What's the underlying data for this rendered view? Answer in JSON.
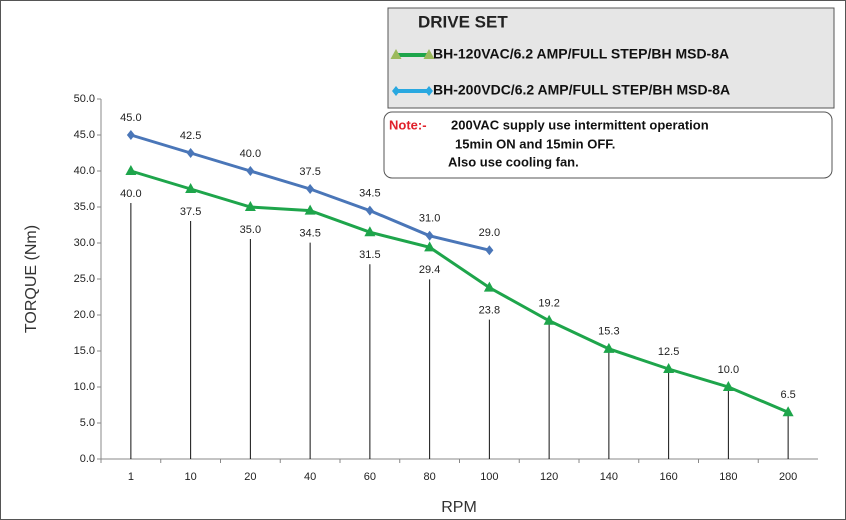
{
  "chart_data": {
    "type": "line",
    "legend_title": "DRIVE SET",
    "note_label": "Note:-",
    "note_lines": [
      "200VAC supply use intermittent operation",
      "15min ON and 15min OFF.",
      "Also use cooling fan."
    ],
    "xlabel": "RPM",
    "ylabel": "TORQUE (Nm)",
    "categories": [
      "1",
      "10",
      "20",
      "40",
      "60",
      "80",
      "100",
      "120",
      "140",
      "160",
      "180",
      "200"
    ],
    "ylim": [
      0,
      50
    ],
    "yticks": [
      {
        "value": 0,
        "label": "0.0"
      },
      {
        "value": 5,
        "label": "5.0"
      },
      {
        "value": 10,
        "label": "10.0"
      },
      {
        "value": 15,
        "label": "15.0"
      },
      {
        "value": 20,
        "label": "20.0"
      },
      {
        "value": 25,
        "label": "25.0"
      },
      {
        "value": 30,
        "label": "30.0"
      },
      {
        "value": 35,
        "label": "35.0"
      },
      {
        "value": 40,
        "label": "40.0"
      },
      {
        "value": 45,
        "label": "45.0"
      },
      {
        "value": 50,
        "label": "50.0"
      }
    ],
    "series": [
      {
        "name": "BH-120VAC/6.2 AMP/FULL STEP/BH MSD-8A",
        "color": "#1ea54b",
        "marker": "triangle",
        "values": [
          40,
          37.5,
          35,
          34.5,
          31.5,
          29.4,
          23.8,
          19.2,
          15.3,
          12.5,
          10,
          6.5
        ],
        "value_labels": [
          "40.0",
          "37.5",
          "35.0",
          "34.5",
          "31.5",
          "29.4",
          "23.8",
          "19.2",
          "15.3",
          "12.5",
          "10.0",
          "6.5"
        ]
      },
      {
        "name": "BH-200VDC/6.2 AMP/FULL STEP/BH MSD-8A",
        "color": "#4a76b8",
        "marker": "diamond",
        "values": [
          45,
          42.5,
          40,
          37.5,
          34.5,
          31,
          29,
          null,
          null,
          null,
          null,
          null
        ],
        "value_labels": [
          "45.0",
          "42.5",
          "40.0",
          "37.5",
          "34.5",
          "31.0",
          "29.0",
          null,
          null,
          null,
          null,
          null
        ]
      }
    ]
  }
}
